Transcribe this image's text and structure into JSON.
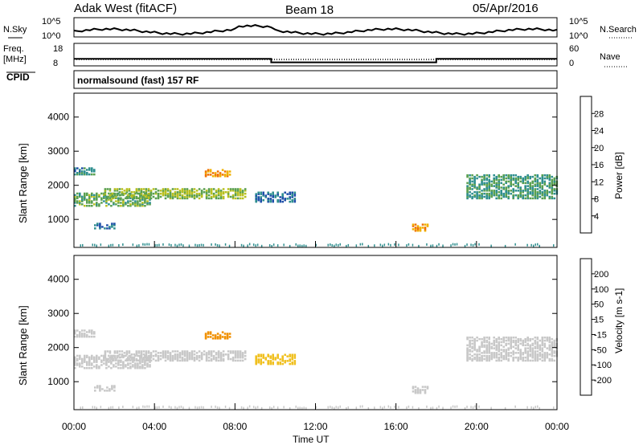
{
  "header": {
    "title": "Adak West (fitACF)",
    "beam": "Beam 18",
    "date": "05/Apr/2016"
  },
  "panels": {
    "nsky": {
      "left_label": "N.Sky",
      "left_ticks": [
        "10^5",
        "10^0"
      ],
      "right_label": "N.Search",
      "right_ticks": [
        "10^5",
        "10^0"
      ]
    },
    "freq": {
      "left_label_1": "Freq.",
      "left_label_2": "[MHz]",
      "left_ticks": [
        "18",
        "8"
      ],
      "right_label": "Nave",
      "right_ticks": [
        "60",
        "0"
      ]
    },
    "cpid": {
      "label": "CPID",
      "text": "normalsound (fast) 157 RF"
    }
  },
  "axes": {
    "y_label": "Slant Range [km]",
    "x_label": "Time UT",
    "x_ticks": [
      "00:00",
      "04:00",
      "08:00",
      "12:00",
      "16:00",
      "20:00",
      "00:00"
    ],
    "y_ticks": [
      "1000",
      "2000",
      "3000",
      "4000"
    ],
    "x_range_hours": [
      0,
      24
    ],
    "y_range_km": [
      180,
      4700
    ]
  },
  "colorbars": {
    "power": {
      "label": "Power [dB]",
      "ticks": [
        "4",
        "8",
        "12",
        "16",
        "20",
        "24",
        "28"
      ],
      "colors": [
        "#1a1aff",
        "#1f4fa8",
        "#2f8f8f",
        "#5aa050",
        "#b8c020",
        "#f0b000",
        "#f07000",
        "#e81010"
      ]
    },
    "velocity": {
      "label": "Velocity [m s-1]",
      "ticks": [
        "200",
        "100",
        "50",
        "15",
        "-15",
        "-50",
        "-100",
        "-200"
      ],
      "colors": [
        "#1a2aa0",
        "#1f5fc0",
        "#2a8a4a",
        "#6ac040",
        "#c8c8c8",
        "#f0c020",
        "#f09000",
        "#e86010",
        "#e01010"
      ]
    }
  },
  "chart_data": {
    "type": "heatmap",
    "title": "Adak West (fitACF)",
    "xlabel": "Time UT",
    "ylabel": "Slant Range [km]",
    "xlim": [
      0,
      24
    ],
    "ylim": [
      180,
      4700
    ],
    "frequency_schedule_mhz": [
      {
        "start_h": 0.0,
        "end_h": 9.8,
        "freq": 12
      },
      {
        "start_h": 9.8,
        "end_h": 18.0,
        "freq": 10
      },
      {
        "start_h": 18.0,
        "end_h": 24.0,
        "freq": 12
      }
    ],
    "echo_regions": [
      {
        "t0": 0.0,
        "t1": 3.8,
        "r0": 1380,
        "r1": 1750,
        "power": 12,
        "velocity": 0
      },
      {
        "t0": 1.5,
        "t1": 8.5,
        "r0": 1600,
        "r1": 1900,
        "power": 14,
        "velocity": 0
      },
      {
        "t0": 6.5,
        "t1": 7.8,
        "r0": 2250,
        "r1": 2450,
        "power": 22,
        "velocity": -60
      },
      {
        "t0": 0.0,
        "t1": 1.0,
        "r0": 2300,
        "r1": 2500,
        "power": 8,
        "velocity": 0
      },
      {
        "t0": 9.0,
        "t1": 11.0,
        "r0": 1500,
        "r1": 1800,
        "power": 6,
        "velocity": -30
      },
      {
        "t0": 16.8,
        "t1": 17.6,
        "r0": 650,
        "r1": 850,
        "power": 22,
        "velocity": 0
      },
      {
        "t0": 19.5,
        "t1": 24.0,
        "r0": 1600,
        "r1": 2300,
        "power": 10,
        "velocity": 0
      },
      {
        "t0": 1.0,
        "t1": 2.0,
        "r0": 720,
        "r1": 900,
        "power": 6,
        "velocity": 0
      }
    ]
  }
}
